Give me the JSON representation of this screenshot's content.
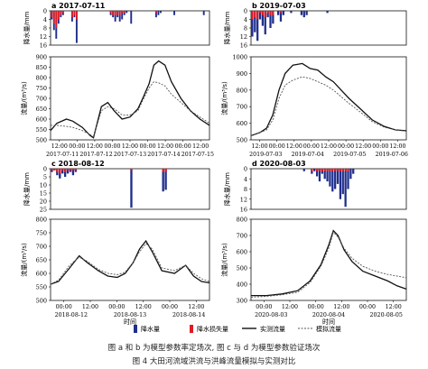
{
  "figure": {
    "caption_line1": "图 a 和 b 为模型参数率定场次, 图 c 与 d 为模型参数验证场次",
    "caption_line2": "图 4    大田河流域洪流与洪峰流量模拟与实测对比",
    "legend": {
      "rain": "降水量",
      "rain_loss": "降水损失量",
      "observed": "实测流量",
      "simulated": "模拟流量"
    },
    "colors": {
      "rain": "#1f2e8c",
      "loss": "#e01b24",
      "observed": "#111111",
      "simulated": "#555555"
    }
  },
  "chart_data": [
    {
      "type": "line",
      "panel": "a 2017-07-11",
      "rain_ylabel": "降水量/mm",
      "flow_ylabel": "流量/(m³/s)",
      "xlabel": "",
      "rain_ylim": [
        16,
        0
      ],
      "rain_ticks": [
        0,
        4,
        8,
        12,
        16
      ],
      "flow_ylim": [
        500,
        900
      ],
      "flow_ticks": [
        500,
        550,
        600,
        650,
        700,
        750,
        800,
        850,
        900
      ],
      "x_ticks": [
        "12:00",
        "00:00",
        "12:00",
        "00:00",
        "12:00",
        "00:00",
        "12:00",
        "00:00",
        "12:00"
      ],
      "date_labels": [
        "2017-07-11",
        "2017-07-12",
        "2017-07-13",
        "2017-07-14",
        "2017-07-15"
      ],
      "rain": [
        4,
        9,
        13,
        6,
        3,
        2,
        0,
        0,
        0,
        5,
        3,
        15,
        0,
        0,
        0,
        0,
        0,
        0,
        0,
        0,
        0,
        0,
        0,
        0,
        0,
        0,
        2,
        3,
        5,
        3,
        5,
        4,
        2,
        1,
        0,
        6,
        0,
        0,
        0,
        0,
        0,
        0,
        0,
        0,
        0,
        0,
        3,
        2,
        1,
        0,
        0,
        0,
        0,
        0,
        2,
        0,
        0,
        0,
        0,
        0,
        0,
        0,
        0,
        0,
        0,
        0,
        0,
        2,
        0,
        0
      ],
      "rain_loss": [
        3,
        6,
        8,
        4,
        2,
        1,
        0,
        0,
        0,
        3,
        2,
        4,
        0,
        0,
        0,
        0,
        0,
        0,
        0,
        0,
        0,
        0,
        0,
        0,
        0,
        0,
        1,
        2,
        2,
        2,
        2,
        1,
        1,
        0,
        0,
        0,
        0,
        0,
        0,
        0,
        0,
        0,
        0,
        0,
        0,
        0,
        1,
        0,
        0,
        0,
        0,
        0,
        0,
        0,
        0,
        0,
        0,
        0,
        0,
        0,
        0,
        0,
        0,
        0,
        0,
        0,
        0,
        0,
        0,
        0
      ],
      "series": [
        {
          "name": "实测流量",
          "x": [
            0,
            0.04,
            0.1,
            0.14,
            0.2,
            0.25,
            0.27,
            0.32,
            0.36,
            0.4,
            0.45,
            0.5,
            0.55,
            0.58,
            0.62,
            0.65,
            0.68,
            0.72,
            0.76,
            0.82,
            0.88,
            0.94,
            1.0
          ],
          "y": [
            545,
            580,
            600,
            590,
            560,
            520,
            510,
            660,
            680,
            640,
            600,
            610,
            650,
            700,
            770,
            860,
            880,
            860,
            780,
            700,
            640,
            600,
            570
          ]
        },
        {
          "name": "模拟流量",
          "x": [
            0,
            0.04,
            0.1,
            0.14,
            0.2,
            0.25,
            0.27,
            0.32,
            0.36,
            0.4,
            0.45,
            0.5,
            0.55,
            0.58,
            0.62,
            0.65,
            0.68,
            0.72,
            0.76,
            0.82,
            0.88,
            0.94,
            1.0
          ],
          "y": [
            570,
            570,
            565,
            560,
            545,
            525,
            515,
            640,
            660,
            650,
            620,
            620,
            640,
            690,
            750,
            780,
            775,
            760,
            720,
            680,
            640,
            610,
            580
          ]
        }
      ]
    },
    {
      "type": "line",
      "panel": "b 2019-07-03",
      "rain_ylabel": "降水量/mm",
      "flow_ylabel": "流量/(m³/s)",
      "xlabel": "",
      "rain_ylim": [
        16,
        0
      ],
      "rain_ticks": [
        0,
        4,
        8,
        12,
        16
      ],
      "flow_ylim": [
        500,
        1000
      ],
      "flow_ticks": [
        500,
        600,
        700,
        800,
        900,
        1000
      ],
      "x_ticks": [
        "12:00",
        "00:00",
        "12:00",
        "00:00",
        "12:00",
        "00:00",
        "12:00",
        "00:00",
        "12:00"
      ],
      "date_labels": [
        "2019-07-03",
        "2019-07-04",
        "2019-07-05",
        "2019-07-06"
      ],
      "rain": [
        12,
        10,
        14,
        4,
        7,
        11,
        3,
        8,
        6,
        0,
        2,
        5,
        2,
        0,
        0,
        1,
        0,
        0,
        0,
        2,
        3,
        2,
        0,
        0,
        0,
        0,
        0,
        0,
        0,
        1,
        0,
        0,
        0,
        0,
        0,
        0,
        0,
        0,
        0,
        0,
        0,
        0,
        0,
        0,
        0,
        0,
        0,
        0,
        0,
        0,
        0,
        0,
        0,
        0,
        0,
        0,
        0,
        0,
        0,
        0
      ],
      "rain_loss": [
        4,
        3,
        4,
        1,
        2,
        3,
        1,
        2,
        2,
        0,
        0,
        1,
        0,
        0,
        0,
        0,
        0,
        0,
        0,
        0,
        0,
        0,
        0,
        0,
        0,
        0,
        0,
        0,
        0,
        0,
        0,
        0,
        0,
        0,
        0,
        0,
        0,
        0,
        0,
        0,
        0,
        0,
        0,
        0,
        0,
        0,
        0,
        0,
        0,
        0,
        0,
        0,
        0,
        0,
        0,
        0,
        0,
        0,
        0,
        0
      ],
      "series": [
        {
          "name": "实测流量",
          "x": [
            0,
            0.06,
            0.1,
            0.14,
            0.18,
            0.22,
            0.27,
            0.33,
            0.38,
            0.43,
            0.48,
            0.53,
            0.58,
            0.63,
            0.7,
            0.78,
            0.86,
            0.93,
            1.0
          ],
          "y": [
            525,
            545,
            570,
            650,
            800,
            900,
            950,
            960,
            930,
            920,
            880,
            850,
            800,
            750,
            690,
            620,
            580,
            560,
            555
          ]
        },
        {
          "name": "模拟流量",
          "x": [
            0,
            0.06,
            0.1,
            0.14,
            0.18,
            0.22,
            0.27,
            0.33,
            0.38,
            0.43,
            0.48,
            0.53,
            0.58,
            0.63,
            0.7,
            0.78,
            0.86,
            0.93,
            1.0
          ],
          "y": [
            525,
            545,
            560,
            620,
            750,
            830,
            860,
            880,
            870,
            850,
            830,
            800,
            760,
            720,
            670,
            610,
            575,
            560,
            552
          ]
        }
      ]
    },
    {
      "type": "line",
      "panel": "c 2018-08-12",
      "rain_ylabel": "降水量/mm",
      "flow_ylabel": "流量/(m³/s)",
      "xlabel": "时间",
      "rain_ylim": [
        25,
        0
      ],
      "rain_ticks": [
        0,
        5,
        10,
        15,
        20,
        25
      ],
      "flow_ylim": [
        500,
        800
      ],
      "flow_ticks": [
        500,
        550,
        600,
        650,
        700,
        750,
        800
      ],
      "x_ticks": [
        "00:00",
        "12:00",
        "00:00",
        "12:00",
        "00:00",
        "12:00"
      ],
      "date_labels": [
        "2018-08-12",
        "2018-08-13",
        "2018-08-14"
      ],
      "rain": [
        2,
        1,
        4,
        6,
        3,
        5,
        3,
        2,
        4,
        2,
        0,
        0,
        0,
        0,
        0,
        0,
        0,
        0,
        0,
        0,
        0,
        0,
        0,
        0,
        0,
        0,
        0,
        0,
        0,
        0,
        24,
        0,
        0,
        0,
        0,
        0,
        0,
        0,
        0,
        0,
        0,
        0,
        14,
        13,
        0,
        0,
        0,
        0,
        0,
        0,
        0,
        0,
        0,
        0,
        0,
        0,
        0,
        0,
        0,
        0
      ],
      "rain_loss": [
        1,
        1,
        2,
        3,
        1,
        2,
        1,
        1,
        1,
        1,
        0,
        0,
        0,
        0,
        0,
        0,
        0,
        0,
        0,
        0,
        0,
        0,
        0,
        0,
        0,
        0,
        0,
        0,
        0,
        0,
        1,
        0,
        0,
        0,
        0,
        0,
        0,
        0,
        0,
        0,
        0,
        0,
        2,
        2,
        0,
        0,
        0,
        0,
        0,
        0,
        0,
        0,
        0,
        0,
        0,
        0,
        0,
        0,
        0,
        0
      ],
      "series": [
        {
          "name": "实测流量",
          "x": [
            0,
            0.05,
            0.12,
            0.18,
            0.23,
            0.3,
            0.36,
            0.42,
            0.47,
            0.52,
            0.56,
            0.6,
            0.64,
            0.7,
            0.78,
            0.85,
            0.9,
            0.95,
            1.0
          ],
          "y": [
            560,
            570,
            620,
            665,
            640,
            610,
            590,
            585,
            600,
            640,
            690,
            720,
            680,
            610,
            600,
            630,
            590,
            570,
            565
          ]
        },
        {
          "name": "模拟流量",
          "x": [
            0,
            0.05,
            0.12,
            0.18,
            0.23,
            0.3,
            0.36,
            0.42,
            0.47,
            0.52,
            0.56,
            0.6,
            0.64,
            0.7,
            0.78,
            0.85,
            0.9,
            0.95,
            1.0
          ],
          "y": [
            560,
            575,
            630,
            660,
            645,
            615,
            600,
            595,
            605,
            640,
            680,
            710,
            690,
            620,
            610,
            630,
            600,
            580,
            570
          ]
        }
      ]
    },
    {
      "type": "line",
      "panel": "d 2020-08-03",
      "rain_ylabel": "降水量/mm",
      "flow_ylabel": "流量/(m³/s)",
      "xlabel": "时间",
      "rain_ylim": [
        16,
        0
      ],
      "rain_ticks": [
        0,
        4,
        8,
        12,
        16
      ],
      "flow_ylim": [
        300,
        800
      ],
      "flow_ticks": [
        300,
        400,
        500,
        600,
        700,
        800
      ],
      "x_ticks": [
        "00:00",
        "12:00",
        "00:00",
        "12:00",
        "00:00",
        "12:00"
      ],
      "date_labels": [
        "2020-08-03",
        "2020-08-04",
        "2020-08-05"
      ],
      "rain": [
        0,
        0,
        0,
        0,
        0,
        0,
        0,
        0,
        0,
        0,
        0,
        0,
        0,
        0,
        0,
        0,
        0,
        0,
        0,
        0,
        1,
        0,
        0,
        2,
        1,
        3,
        5,
        2,
        4,
        5,
        7,
        9,
        8,
        6,
        12,
        10,
        15,
        8,
        4,
        2,
        0,
        0,
        0,
        0,
        0,
        0,
        0,
        0,
        0,
        0,
        0,
        0,
        0,
        0,
        0,
        0,
        0,
        0,
        0,
        0
      ],
      "rain_loss": [
        0,
        0,
        0,
        0,
        0,
        0,
        0,
        0,
        0,
        0,
        0,
        0,
        0,
        0,
        0,
        0,
        0,
        0,
        0,
        0,
        0,
        0,
        0,
        1,
        0,
        1,
        1,
        1,
        1,
        1,
        1,
        1,
        1,
        1,
        1,
        1,
        1,
        1,
        0,
        0,
        0,
        0,
        0,
        0,
        0,
        0,
        0,
        0,
        0,
        0,
        0,
        0,
        0,
        0,
        0,
        0,
        0,
        0,
        0,
        0
      ],
      "series": [
        {
          "name": "实测流量",
          "x": [
            0,
            0.1,
            0.2,
            0.3,
            0.38,
            0.45,
            0.5,
            0.53,
            0.56,
            0.6,
            0.65,
            0.72,
            0.8,
            0.88,
            0.94,
            1.0
          ],
          "y": [
            330,
            330,
            340,
            360,
            420,
            520,
            640,
            730,
            700,
            610,
            540,
            480,
            450,
            420,
            390,
            370
          ]
        },
        {
          "name": "模拟流量",
          "x": [
            0,
            0.1,
            0.2,
            0.3,
            0.38,
            0.45,
            0.5,
            0.53,
            0.56,
            0.6,
            0.65,
            0.72,
            0.8,
            0.88,
            0.94,
            1.0
          ],
          "y": [
            320,
            325,
            335,
            350,
            410,
            510,
            620,
            720,
            690,
            620,
            560,
            510,
            480,
            460,
            450,
            440
          ]
        }
      ]
    }
  ]
}
